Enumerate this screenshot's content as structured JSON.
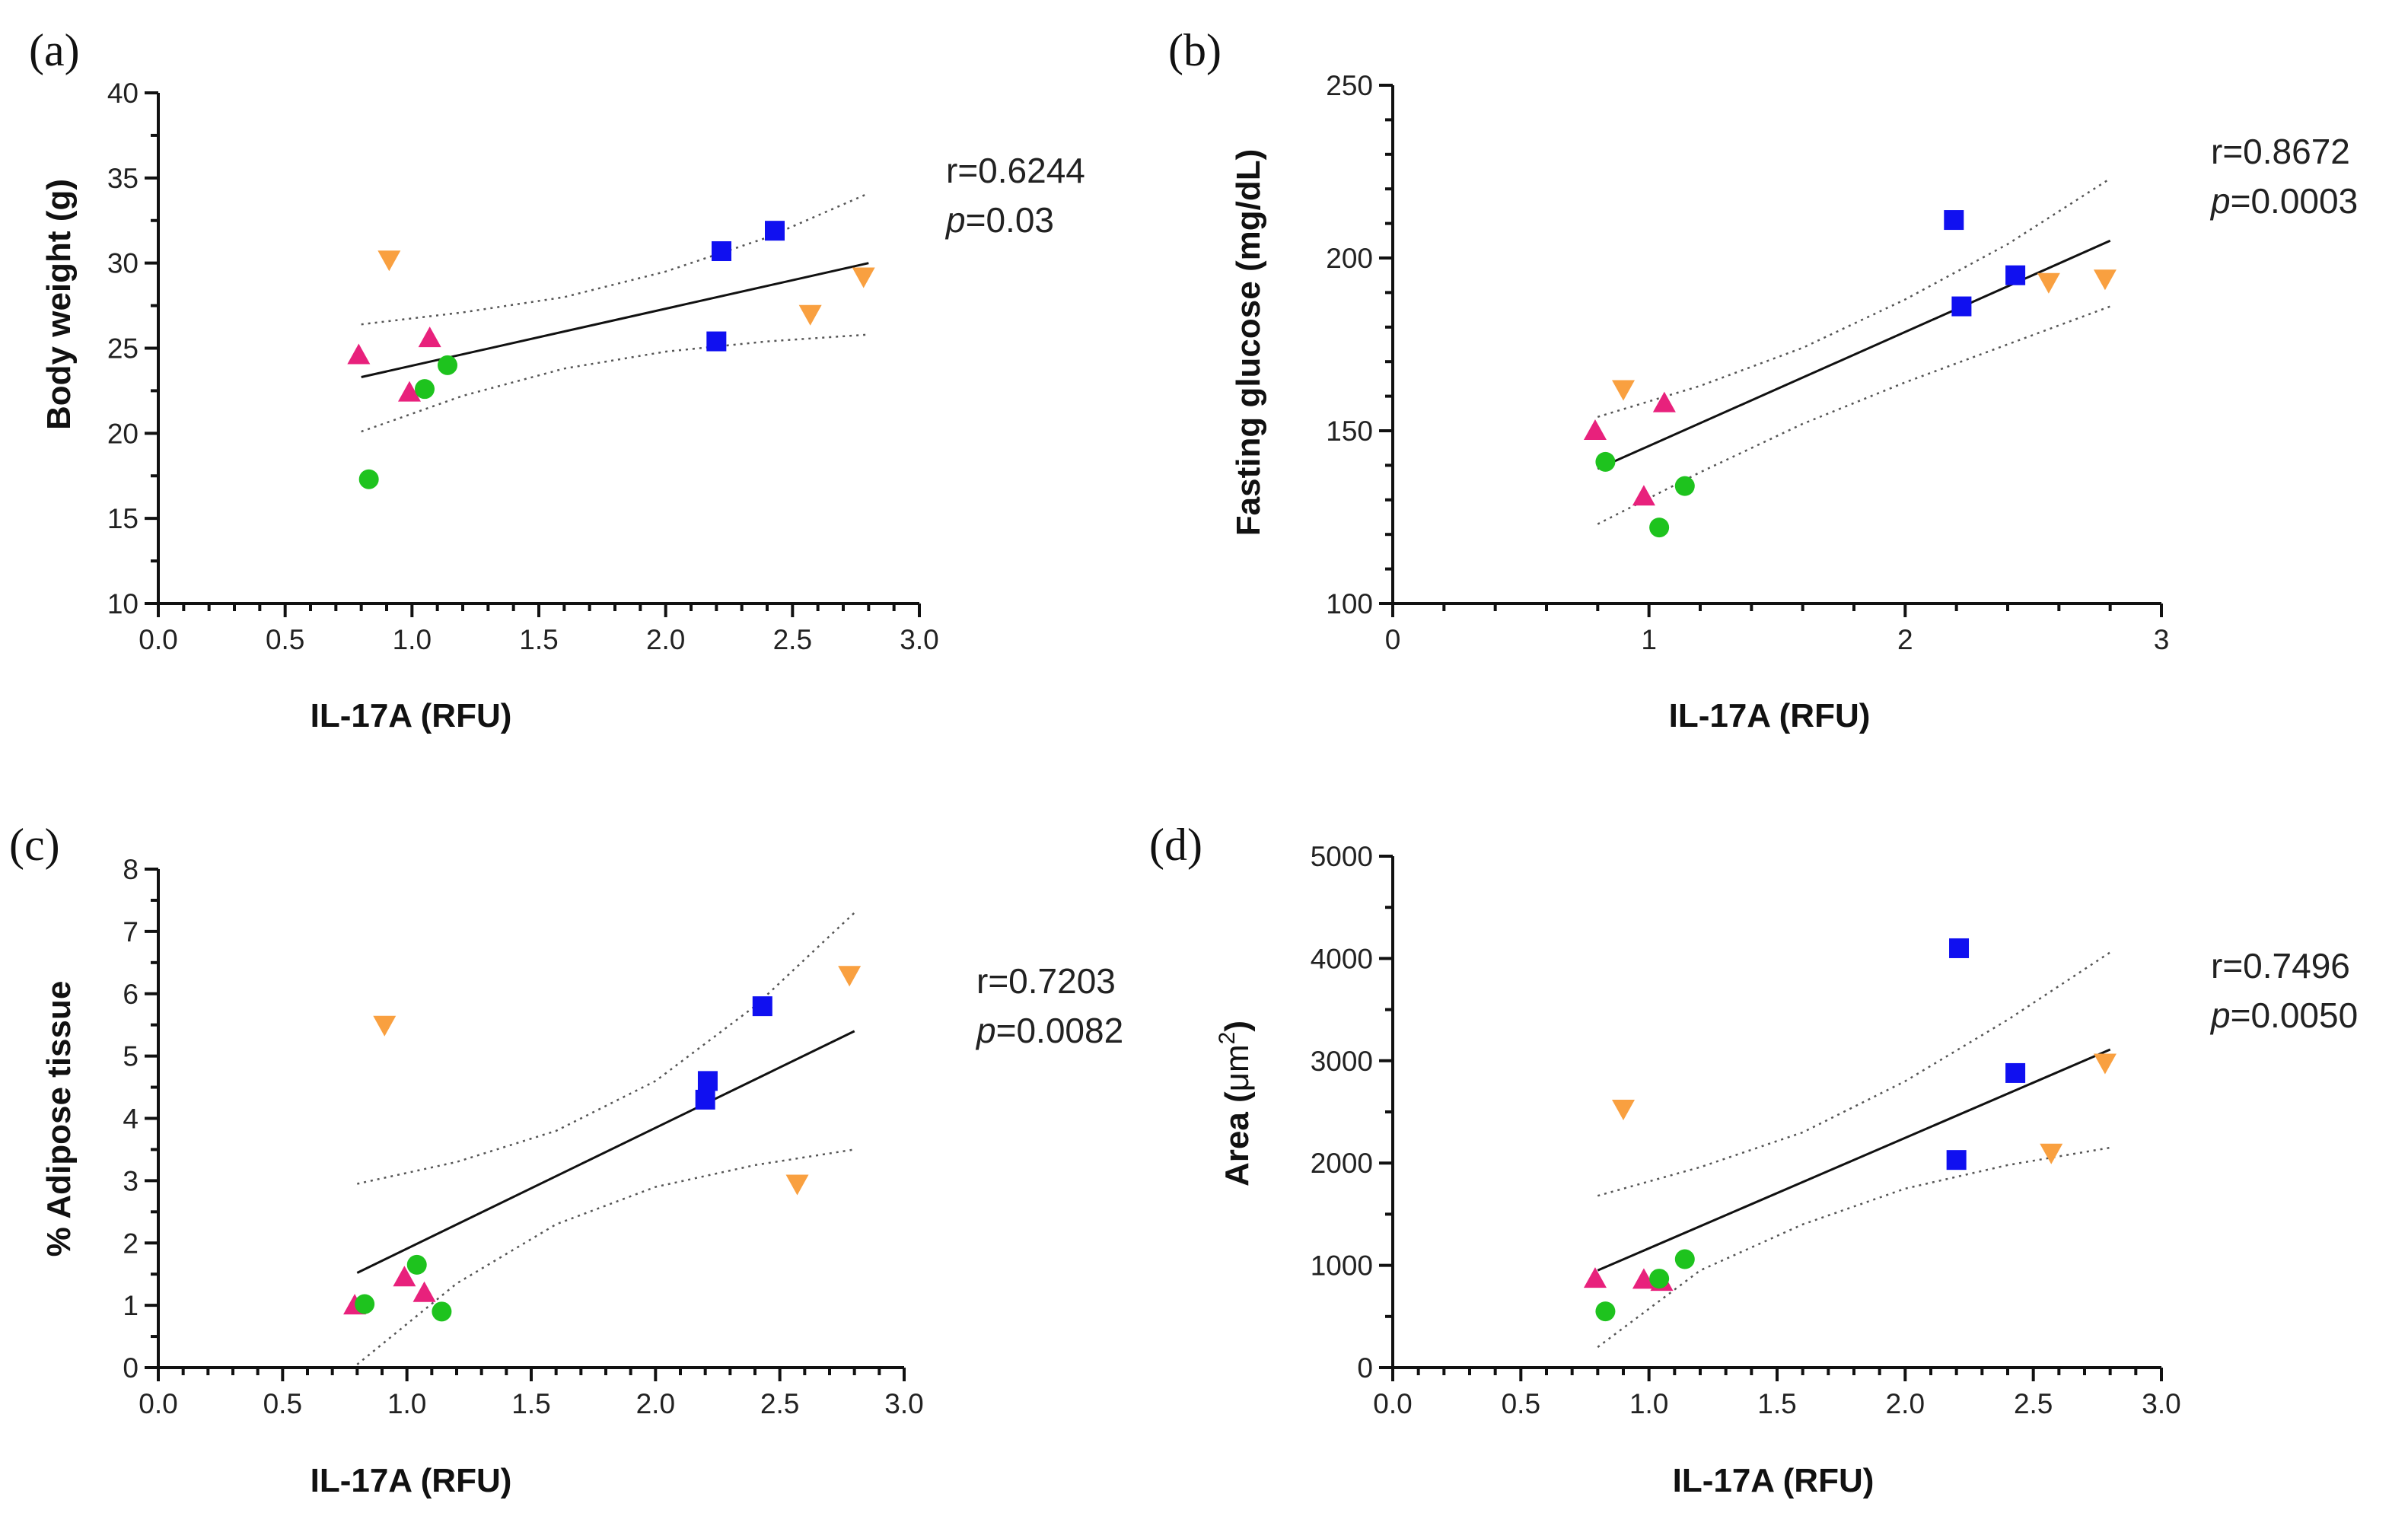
{
  "colors": {
    "square": "#1010f0",
    "triangle_up": "#e8217c",
    "triangle_down": "#f9a040",
    "circle": "#1ec31e"
  },
  "chart_data": [
    {
      "id": "a",
      "type": "scatter",
      "panel_label": "(a)",
      "xlabel": "IL-17A (RFU)",
      "ylabel": "Body weight (g)",
      "xlim": [
        0,
        3
      ],
      "ylim": [
        10,
        40
      ],
      "xticks": [
        0,
        0.5,
        1,
        1.5,
        2,
        2.5,
        3
      ],
      "xtick_labels": [
        "0.0",
        "0.5",
        "1.0",
        "1.5",
        "2.0",
        "2.5",
        "3.0"
      ],
      "yticks": [
        10,
        15,
        20,
        25,
        30,
        35,
        40
      ],
      "ytick_labels": [
        "10",
        "15",
        "20",
        "25",
        "30",
        "35",
        "40"
      ],
      "stat_r": "r=0.6244",
      "stat_p_label": "p",
      "stat_p_value": "=0.03",
      "series": [
        {
          "name": "square",
          "marker": "square",
          "points": [
            [
              2.22,
              30.7
            ],
            [
              2.43,
              31.9
            ],
            [
              2.2,
              25.4
            ]
          ]
        },
        {
          "name": "triangle_down",
          "marker": "triangle_down",
          "points": [
            [
              0.91,
              30.2
            ],
            [
              2.57,
              27.0
            ],
            [
              2.78,
              29.2
            ]
          ]
        },
        {
          "name": "triangle_up",
          "marker": "triangle_up",
          "points": [
            [
              0.79,
              24.6
            ],
            [
              0.99,
              22.4
            ],
            [
              1.07,
              25.6
            ]
          ]
        },
        {
          "name": "circle",
          "marker": "circle",
          "points": [
            [
              0.83,
              17.3
            ],
            [
              1.05,
              22.6
            ],
            [
              1.14,
              24.0
            ]
          ]
        }
      ],
      "fit_line": [
        [
          0.8,
          23.3
        ],
        [
          2.8,
          30.0
        ]
      ],
      "ci_upper": [
        [
          0.8,
          26.4
        ],
        [
          1.2,
          27.1
        ],
        [
          1.6,
          28.0
        ],
        [
          2.0,
          29.5
        ],
        [
          2.4,
          31.5
        ],
        [
          2.8,
          34.1
        ]
      ],
      "ci_lower": [
        [
          0.8,
          20.1
        ],
        [
          1.2,
          22.2
        ],
        [
          1.6,
          23.8
        ],
        [
          2.0,
          24.8
        ],
        [
          2.4,
          25.4
        ],
        [
          2.8,
          25.8
        ]
      ]
    },
    {
      "id": "b",
      "type": "scatter",
      "panel_label": "(b)",
      "xlabel": "IL-17A (RFU)",
      "ylabel": "Fasting glucose (mg/dL)",
      "xlim": [
        0,
        3
      ],
      "ylim": [
        100,
        250
      ],
      "xticks": [
        0,
        1,
        2,
        3
      ],
      "xtick_labels": [
        "0",
        "1",
        "2",
        "3"
      ],
      "yticks": [
        100,
        150,
        200,
        250
      ],
      "ytick_labels": [
        "100",
        "150",
        "200",
        "250"
      ],
      "stat_r": "r=0.8672",
      "stat_p_label": "p",
      "stat_p_value": "=0.0003",
      "series": [
        {
          "name": "square",
          "marker": "square",
          "points": [
            [
              2.19,
              211
            ],
            [
              2.22,
              186
            ],
            [
              2.43,
              195
            ]
          ]
        },
        {
          "name": "triangle_down",
          "marker": "triangle_down",
          "points": [
            [
              0.9,
              162
            ],
            [
              2.56,
              193
            ],
            [
              2.78,
              194
            ]
          ]
        },
        {
          "name": "triangle_up",
          "marker": "triangle_up",
          "points": [
            [
              0.79,
              150
            ],
            [
              0.98,
              131
            ],
            [
              1.06,
              158
            ]
          ]
        },
        {
          "name": "circle",
          "marker": "circle",
          "points": [
            [
              0.83,
              141
            ],
            [
              1.04,
              122
            ],
            [
              1.14,
              134
            ]
          ]
        }
      ],
      "fit_line": [
        [
          0.8,
          139
        ],
        [
          2.8,
          205
        ]
      ],
      "ci_upper": [
        [
          0.8,
          154
        ],
        [
          1.2,
          163
        ],
        [
          1.6,
          174
        ],
        [
          2.0,
          188
        ],
        [
          2.4,
          204
        ],
        [
          2.8,
          223
        ]
      ],
      "ci_lower": [
        [
          0.8,
          123
        ],
        [
          1.2,
          138
        ],
        [
          1.6,
          152
        ],
        [
          2.0,
          164
        ],
        [
          2.4,
          175
        ],
        [
          2.8,
          186
        ]
      ]
    },
    {
      "id": "c",
      "type": "scatter",
      "panel_label": "(c)",
      "xlabel": "IL-17A (RFU)",
      "ylabel": "% Adipose tissue",
      "xlim": [
        0,
        3
      ],
      "ylim": [
        0,
        8
      ],
      "xticks": [
        0,
        0.5,
        1,
        1.5,
        2,
        2.5,
        3
      ],
      "xtick_labels": [
        "0.0",
        "0.5",
        "1.0",
        "1.5",
        "2.0",
        "2.5",
        "3.0"
      ],
      "yticks": [
        0,
        1,
        2,
        3,
        4,
        5,
        6,
        7,
        8
      ],
      "ytick_labels": [
        "0",
        "1",
        "2",
        "3",
        "4",
        "5",
        "6",
        "7",
        "8"
      ],
      "stat_r": "r=0.7203",
      "stat_p_label": "p",
      "stat_p_value": "=0.0082",
      "series": [
        {
          "name": "square",
          "marker": "square",
          "points": [
            [
              2.21,
              4.6
            ],
            [
              2.2,
              4.3
            ],
            [
              2.43,
              5.8
            ]
          ]
        },
        {
          "name": "triangle_down",
          "marker": "triangle_down",
          "points": [
            [
              0.91,
              5.5
            ],
            [
              2.57,
              2.95
            ],
            [
              2.78,
              6.3
            ]
          ]
        },
        {
          "name": "triangle_up",
          "marker": "triangle_up",
          "points": [
            [
              0.79,
              1.0
            ],
            [
              0.99,
              1.45
            ],
            [
              1.07,
              1.2
            ]
          ]
        },
        {
          "name": "circle",
          "marker": "circle",
          "points": [
            [
              0.83,
              1.02
            ],
            [
              1.04,
              1.65
            ],
            [
              1.14,
              0.9
            ]
          ]
        }
      ],
      "fit_line": [
        [
          0.8,
          1.52
        ],
        [
          2.8,
          5.4
        ]
      ],
      "ci_upper": [
        [
          0.8,
          2.95
        ],
        [
          1.2,
          3.3
        ],
        [
          1.6,
          3.8
        ],
        [
          2.0,
          4.6
        ],
        [
          2.4,
          5.8
        ],
        [
          2.8,
          7.3
        ]
      ],
      "ci_lower": [
        [
          0.8,
          0.05
        ],
        [
          1.2,
          1.35
        ],
        [
          1.6,
          2.3
        ],
        [
          2.0,
          2.9
        ],
        [
          2.4,
          3.25
        ],
        [
          2.8,
          3.5
        ]
      ]
    },
    {
      "id": "d",
      "type": "scatter",
      "panel_label": "(d)",
      "xlabel": "IL-17A (RFU)",
      "ylabel_main": "Area (",
      "ylabel_unit": "μm",
      "ylabel_sup": "2",
      "ylabel_end": ")",
      "xlim": [
        0,
        3
      ],
      "ylim": [
        0,
        5000
      ],
      "xticks": [
        0,
        0.5,
        1,
        1.5,
        2,
        2.5,
        3
      ],
      "xtick_labels": [
        "0.0",
        "0.5",
        "1.0",
        "1.5",
        "2.0",
        "2.5",
        "3.0"
      ],
      "yticks": [
        0,
        1000,
        2000,
        3000,
        4000,
        5000
      ],
      "ytick_labels": [
        "0",
        "1000",
        "2000",
        "3000",
        "4000",
        "5000"
      ],
      "stat_r": "r=0.7496",
      "stat_p_label": "p",
      "stat_p_value": "=0.0050",
      "series": [
        {
          "name": "square",
          "marker": "square",
          "points": [
            [
              2.21,
              4100
            ],
            [
              2.2,
              2030
            ],
            [
              2.43,
              2880
            ]
          ]
        },
        {
          "name": "triangle_down",
          "marker": "triangle_down",
          "points": [
            [
              0.9,
              2530
            ],
            [
              2.57,
              2100
            ],
            [
              2.78,
              2980
            ]
          ]
        },
        {
          "name": "triangle_up",
          "marker": "triangle_up",
          "points": [
            [
              0.79,
              870
            ],
            [
              0.98,
              860
            ],
            [
              1.05,
              840
            ]
          ]
        },
        {
          "name": "circle",
          "marker": "circle",
          "points": [
            [
              0.83,
              550
            ],
            [
              1.04,
              870
            ],
            [
              1.14,
              1060
            ]
          ]
        }
      ],
      "fit_line": [
        [
          0.8,
          950
        ],
        [
          2.8,
          3110
        ]
      ],
      "ci_upper": [
        [
          0.8,
          1680
        ],
        [
          1.2,
          1960
        ],
        [
          1.6,
          2300
        ],
        [
          2.0,
          2800
        ],
        [
          2.4,
          3400
        ],
        [
          2.8,
          4060
        ]
      ],
      "ci_lower": [
        [
          0.8,
          200
        ],
        [
          1.2,
          950
        ],
        [
          1.6,
          1400
        ],
        [
          2.0,
          1750
        ],
        [
          2.4,
          1980
        ],
        [
          2.8,
          2150
        ]
      ]
    }
  ]
}
